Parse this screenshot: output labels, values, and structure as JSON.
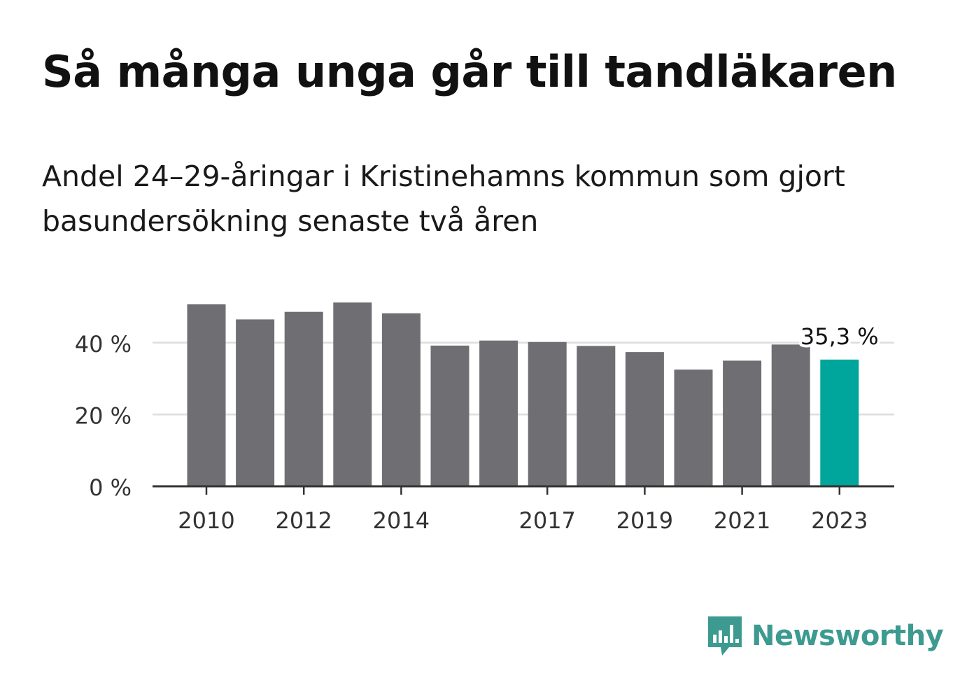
{
  "header": {
    "title": "Så många unga går till tandläkaren",
    "subtitle": "Andel 24–29-åringar i Kristinehamns kommun som gjort basundersökning senaste två åren"
  },
  "chart_data": {
    "type": "bar",
    "categories": [
      "2010",
      "2011",
      "2012",
      "2013",
      "2014",
      "2015",
      "2016",
      "2017",
      "2018",
      "2019",
      "2020",
      "2021",
      "2022",
      "2023"
    ],
    "values": [
      50.7,
      46.5,
      48.6,
      51.2,
      48.2,
      39.2,
      40.6,
      40.2,
      39.1,
      37.4,
      32.5,
      35.0,
      39.5,
      35.3
    ],
    "x_tick_labels": [
      "2010",
      "2012",
      "2014",
      "2017",
      "2019",
      "2021",
      "2023"
    ],
    "y_ticks": [
      0,
      20,
      40
    ],
    "y_tick_labels": [
      "0 %",
      "20 %",
      "40 %"
    ],
    "ylim": [
      0,
      52
    ],
    "grid": true,
    "highlight_index": 13,
    "highlight_label": "35,3 %",
    "colors": {
      "bar": "#6f6e73",
      "highlight": "#00a59b",
      "grid": "#dddddd",
      "axis": "#333333"
    }
  },
  "branding": {
    "name": "Newsworthy",
    "icon": "newsworthy-logo-icon",
    "color": "#3d9a91"
  }
}
